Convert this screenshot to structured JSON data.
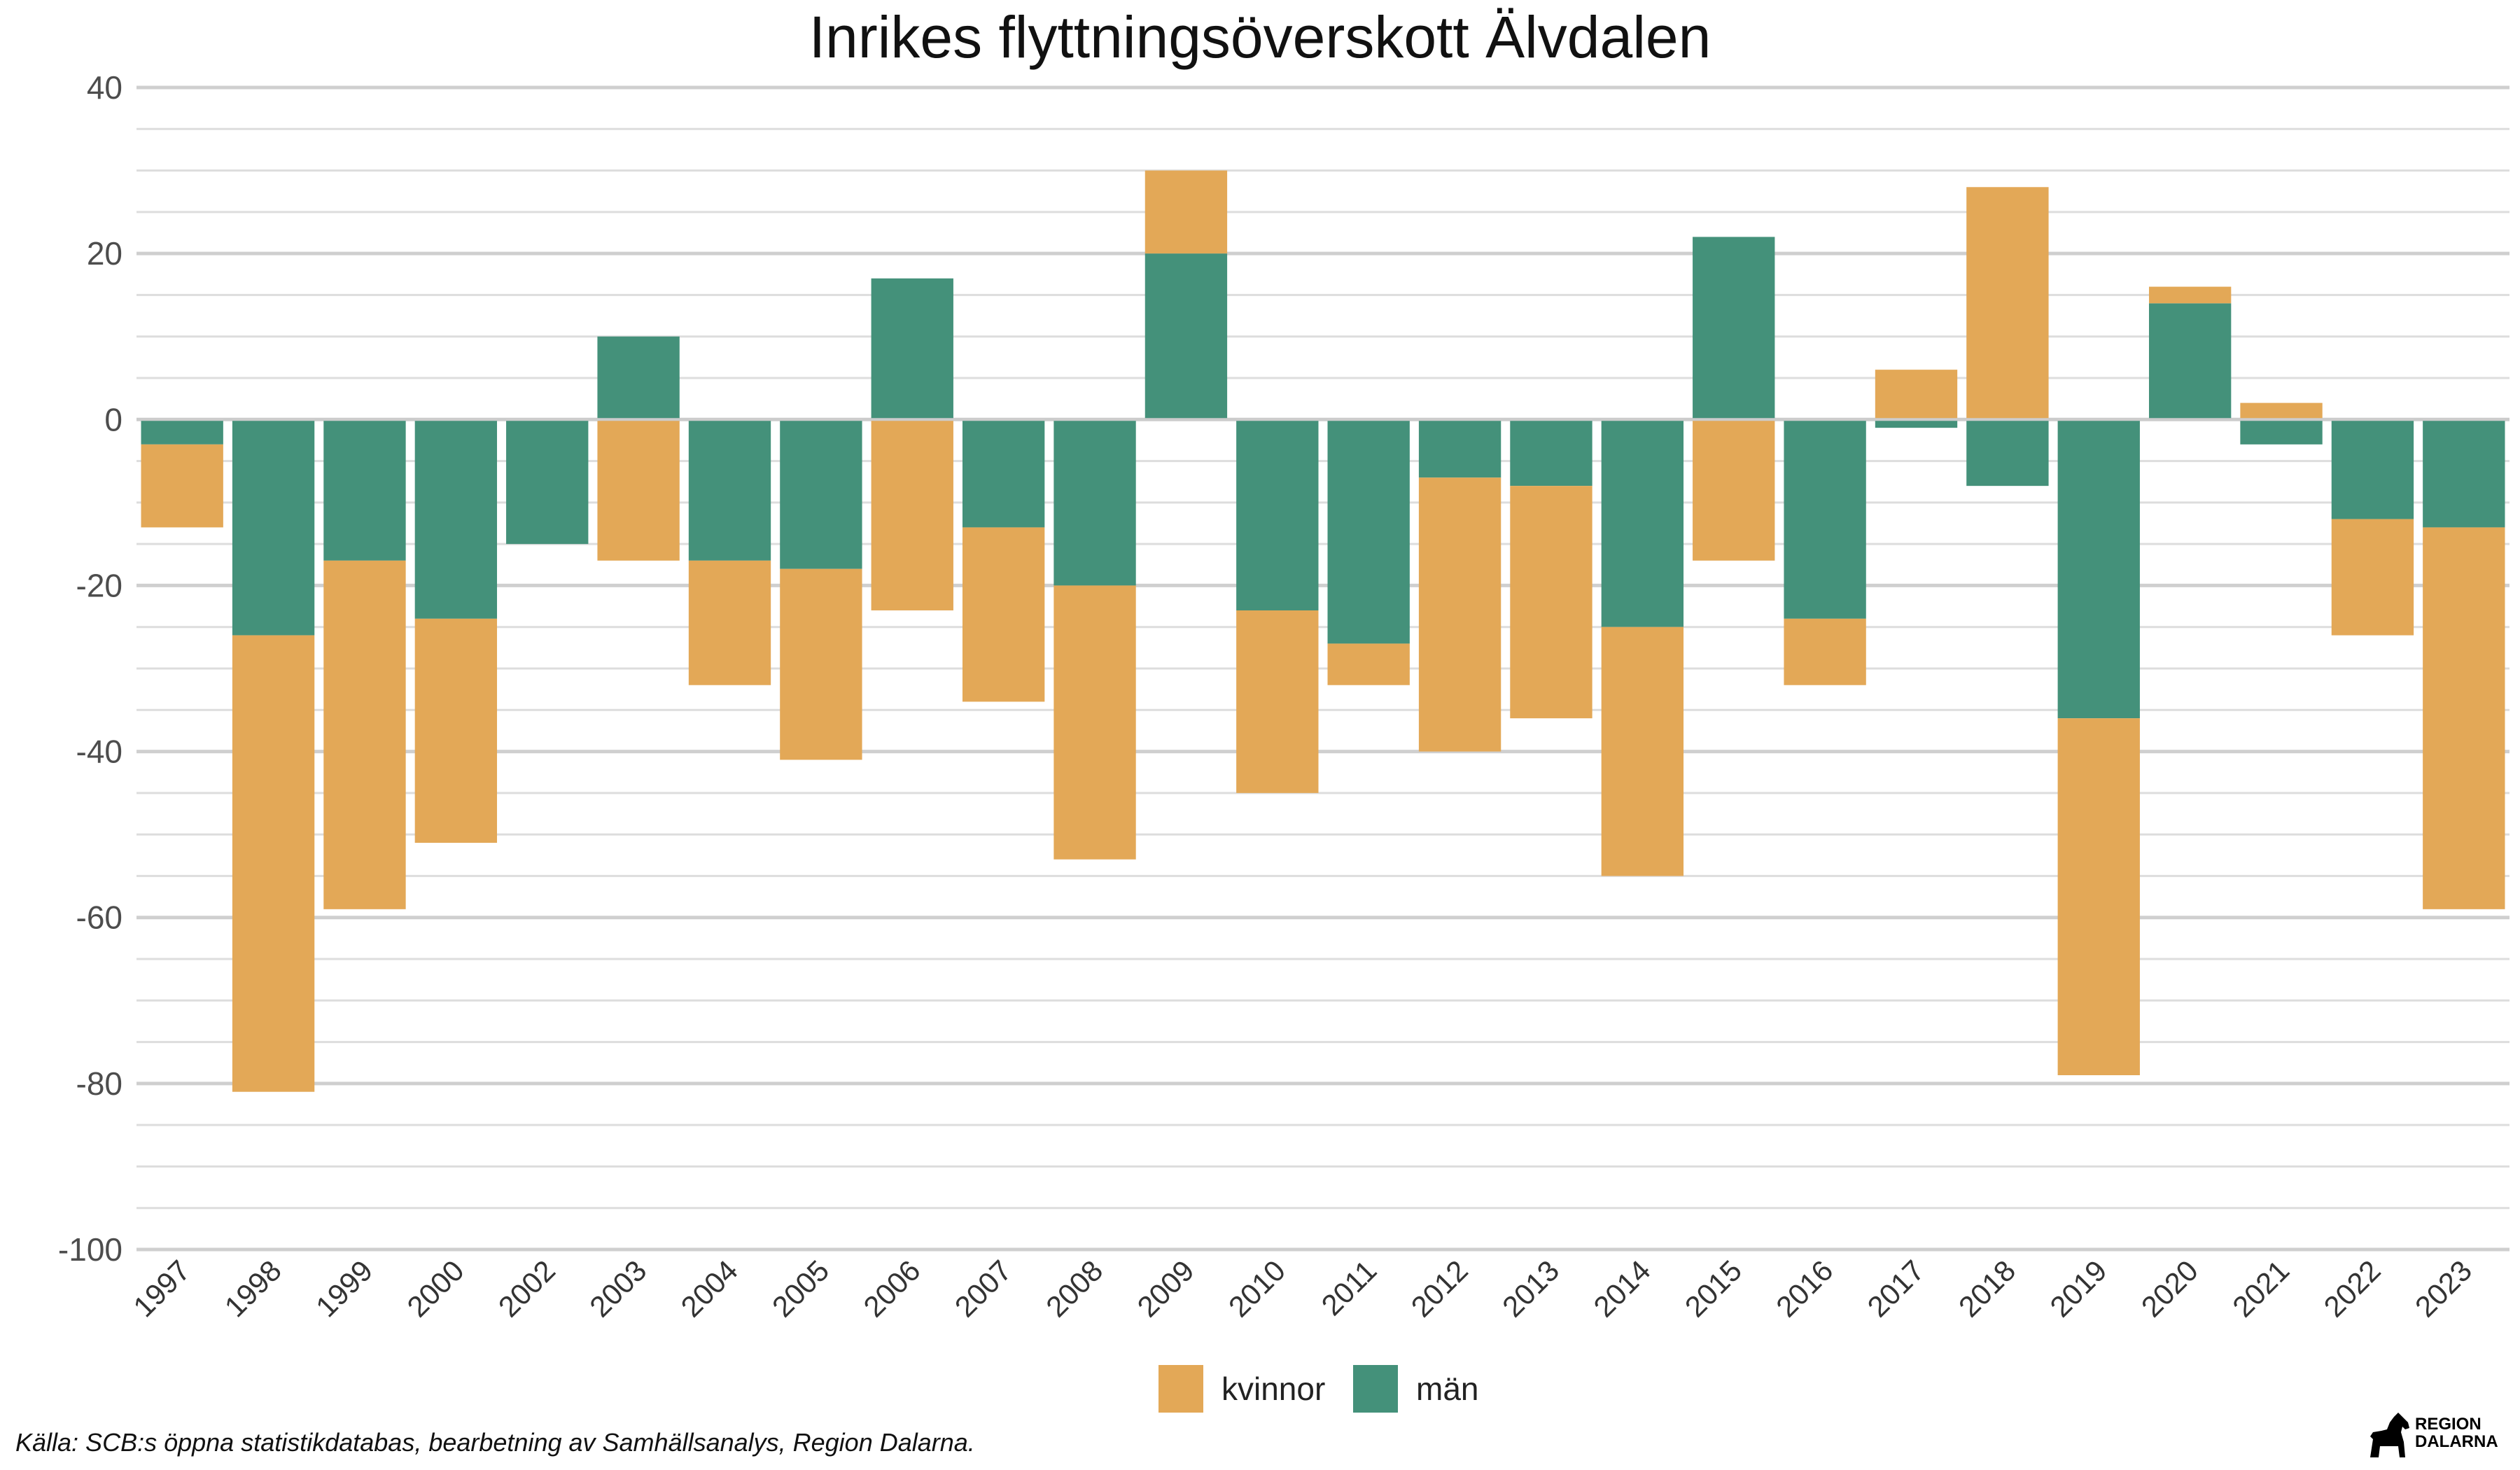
{
  "chart_data": {
    "type": "bar",
    "stacked": true,
    "title": "Inrikes flyttningsöverskott Älvdalen",
    "xlabel": "",
    "ylabel": "",
    "ylim": [
      -100,
      40
    ],
    "yticks": [
      40,
      20,
      0,
      -20,
      -40,
      -60,
      -80,
      -100
    ],
    "grid": true,
    "legend_position": "bottom",
    "categories": [
      "1997",
      "1998",
      "1999",
      "2000",
      "2002",
      "2003",
      "2004",
      "2005",
      "2006",
      "2007",
      "2008",
      "2009",
      "2010",
      "2011",
      "2012",
      "2013",
      "2014",
      "2015",
      "2016",
      "2017",
      "2018",
      "2019",
      "2020",
      "2021",
      "2022",
      "2023"
    ],
    "series": [
      {
        "name": "kvinnor",
        "color": "#E3A857",
        "values": [
          -10,
          -55,
          -42,
          -27,
          0,
          -17,
          -15,
          -23,
          -23,
          -21,
          -33,
          10,
          -22,
          -5,
          -33,
          -28,
          -30,
          -17,
          -8,
          6,
          28,
          -43,
          2,
          2,
          -14,
          -46
        ]
      },
      {
        "name": "män",
        "color": "#44917A",
        "values": [
          -3,
          -26,
          -17,
          -24,
          -15,
          10,
          -17,
          -18,
          17,
          -13,
          -20,
          20,
          -23,
          -27,
          -7,
          -8,
          -25,
          22,
          -24,
          -1,
          -8,
          -36,
          14,
          -3,
          -12,
          -13
        ]
      }
    ]
  },
  "source_note": "Källa: SCB:s öppna statistikdatabas, bearbetning av Samhällsanalys, Region Dalarna.",
  "logo": {
    "line1": "REGION",
    "line2": "DALARNA",
    "icon": "dala-horse-icon"
  }
}
